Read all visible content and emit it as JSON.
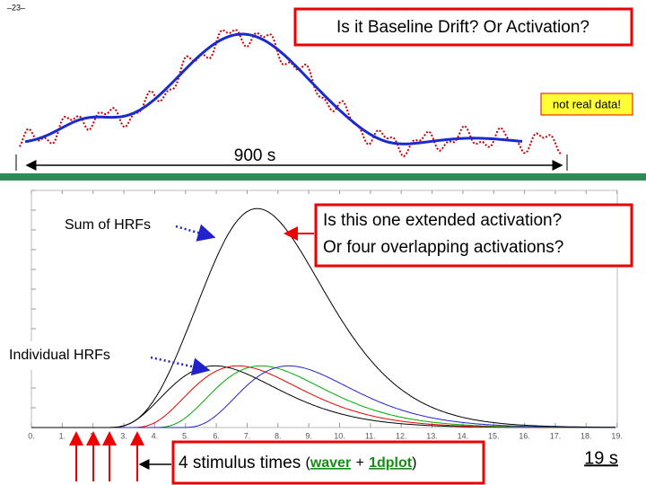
{
  "page_number": "–23–",
  "title": "Is it Baseline Drift?  Or Activation?",
  "note": "not real data!",
  "duration_label": "900 s",
  "sum_label": "Sum of HRFs",
  "question": [
    "Is this one extended activation?",
    "Or four overlapping activations?"
  ],
  "individual_label": "Individual HRFs",
  "caption": {
    "text": "4 stimulus times",
    "open": "(",
    "waver": "waver",
    "plus": "+",
    "onedplot": "1dplot",
    "close": ")"
  },
  "span_label": "19 s",
  "x_tick_labels": [
    "0.",
    "1.",
    "2.",
    "3.",
    "4.",
    "5.",
    "6.",
    "7.",
    "8.",
    "9.",
    "10.",
    "11.",
    "12.",
    "13.",
    "14.",
    "15.",
    "16.",
    "17.",
    "18.",
    "19."
  ]
}
